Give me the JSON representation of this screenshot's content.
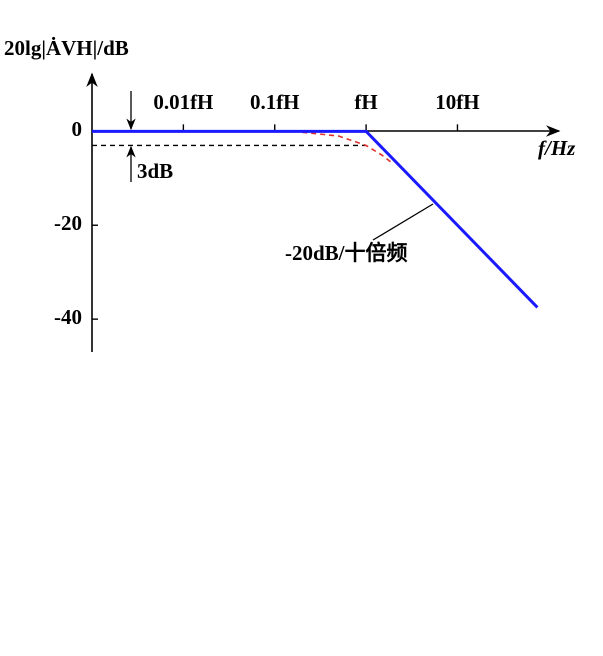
{
  "chart_data": {
    "type": "line",
    "y_label": "20lg|ȦVH|/dB",
    "x_label": "f/Hz",
    "log_x": true,
    "xlim": [
      0.001,
      126
    ],
    "xticks": [
      {
        "value": 0.01,
        "label": "0.01fH"
      },
      {
        "value": 0.1,
        "label": "0.1fH"
      },
      {
        "value": 1,
        "label": "fH"
      },
      {
        "value": 10,
        "label": "10fH"
      }
    ],
    "ylim": [
      -47,
      12
    ],
    "yticks": [
      0,
      -20,
      -40
    ],
    "grid": false,
    "series": [
      {
        "color": "#1a1aff",
        "x": [
          0.001,
          1,
          75
        ],
        "values": [
          0,
          0,
          -37.5
        ]
      },
      {
        "color": "#e0302a",
        "dashed": true,
        "x": [
          0.2,
          0.5,
          1,
          1.5,
          2
        ],
        "values": [
          -0.2,
          -1,
          -3,
          -5.1,
          -7
        ]
      }
    ],
    "reference": {
      "value": -3,
      "label": "3dB"
    },
    "annotation": "-20dB/十倍频"
  }
}
